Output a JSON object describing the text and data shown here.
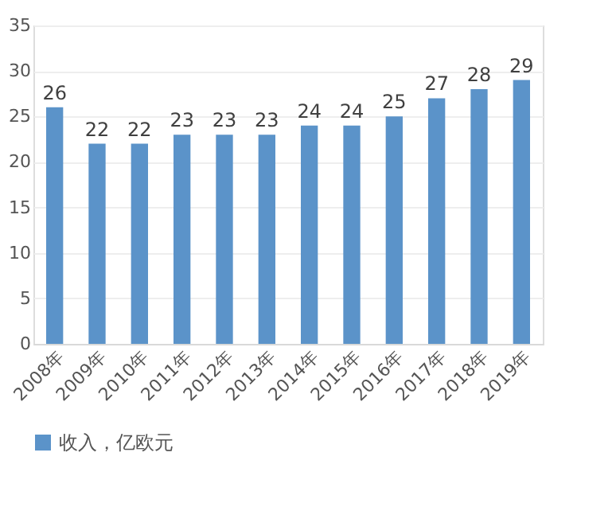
{
  "chart_data": {
    "type": "bar",
    "categories": [
      "2008年",
      "2009年",
      "2010年",
      "2011年",
      "2012年",
      "2013年",
      "2014年",
      "2015年",
      "2016年",
      "2017年",
      "2018年",
      "2019年"
    ],
    "series": [
      {
        "name": "收入，亿欧元",
        "color": "#5b93c9",
        "values": [
          26,
          22,
          22,
          23,
          23,
          23,
          24,
          24,
          25,
          27,
          28,
          29
        ]
      }
    ],
    "ylim": [
      0,
      35
    ],
    "yticks": [
      0,
      5,
      10,
      15,
      20,
      25,
      30,
      35
    ],
    "grid": "y",
    "legend": "bottom",
    "data_labels": true
  }
}
